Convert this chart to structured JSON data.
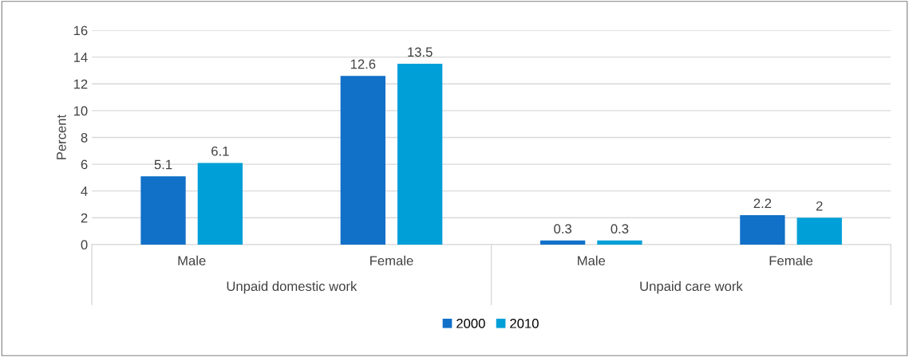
{
  "chart_data": {
    "type": "bar",
    "ylabel": "Percent",
    "categories": [
      "Male",
      "Female",
      "Male",
      "Female"
    ],
    "series": [
      {
        "name": "2000",
        "color": "#1170c8",
        "values": [
          5.1,
          12.6,
          0.3,
          2.2
        ]
      },
      {
        "name": "2010",
        "color": "#019fd8",
        "values": [
          6.1,
          13.5,
          0.3,
          2
        ]
      }
    ],
    "annotations": [
      "Unpaid domestic work",
      "Unpaid care work"
    ],
    "ylim": [
      0,
      16
    ],
    "yticks": [
      0,
      2,
      4,
      6,
      8,
      10,
      12,
      14,
      16
    ],
    "grid": "y",
    "legend": "bottom",
    "data_labels": true
  }
}
